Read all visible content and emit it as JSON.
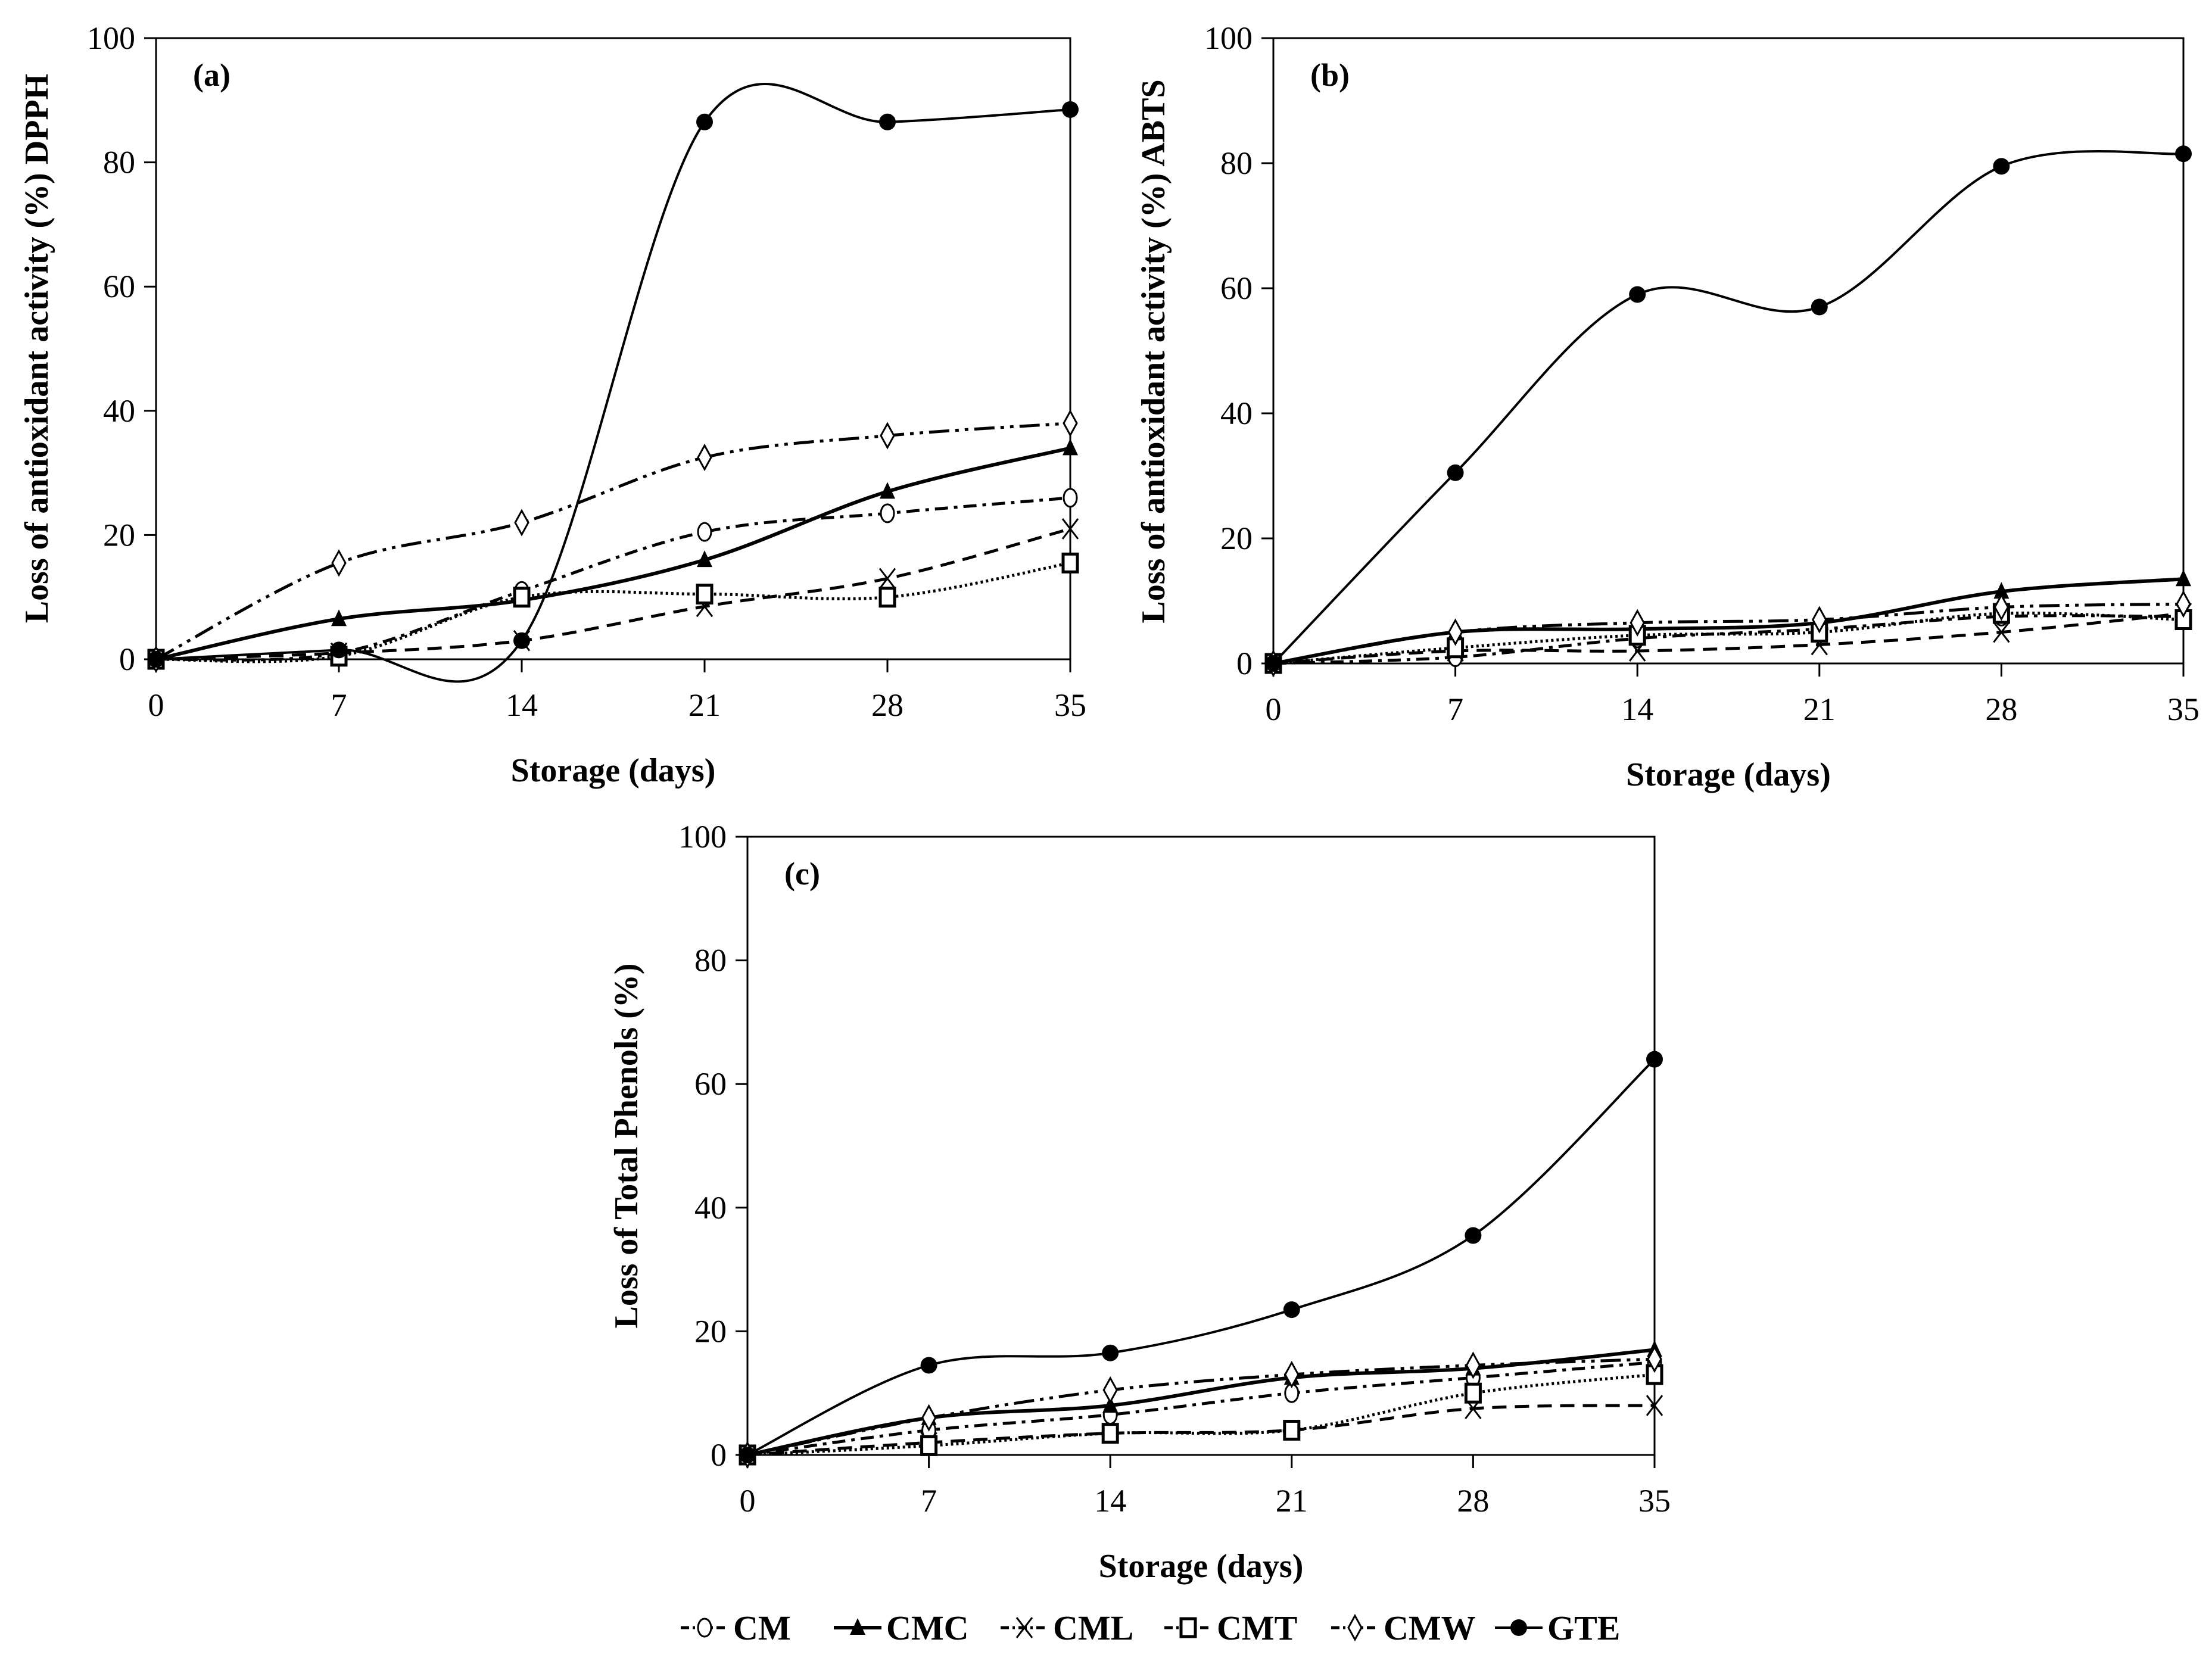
{
  "chart_data": [
    {
      "type": "line",
      "panel_label": "(a)",
      "xlabel": "Storage (days)",
      "ylabel": "Loss of antioxidant activity (%) DPPH",
      "x": [
        0,
        7,
        14,
        21,
        28,
        35
      ],
      "xticks": [
        "0",
        "7",
        "14",
        "21",
        "28",
        "35"
      ],
      "yticks": [
        "0",
        "20",
        "40",
        "60",
        "80",
        "100"
      ],
      "xlim": [
        0,
        35
      ],
      "ylim": [
        0,
        100
      ],
      "grid": false,
      "series": [
        {
          "name": "CM",
          "values": [
            0,
            1,
            11,
            20.5,
            23.5,
            26
          ]
        },
        {
          "name": "CMC",
          "values": [
            0,
            6.5,
            9.5,
            16,
            27,
            34
          ]
        },
        {
          "name": "CML",
          "values": [
            0,
            1,
            3,
            8.5,
            13,
            21
          ]
        },
        {
          "name": "CMT",
          "values": [
            0,
            0.5,
            10,
            10.5,
            10,
            15.5
          ]
        },
        {
          "name": "CMW",
          "values": [
            0,
            15.5,
            22,
            32.5,
            36,
            38
          ]
        },
        {
          "name": "GTE",
          "values": [
            0,
            1.5,
            3,
            86.5,
            86.5,
            88.5
          ]
        }
      ]
    },
    {
      "type": "line",
      "panel_label": "(b)",
      "xlabel": "Storage (days)",
      "ylabel": "Loss of antioxidant activity (%) ABTS",
      "x": [
        0,
        7,
        14,
        21,
        28,
        35
      ],
      "xticks": [
        "0",
        "7",
        "14",
        "21",
        "28",
        "35"
      ],
      "yticks": [
        "0",
        "20",
        "40",
        "60",
        "80",
        "100"
      ],
      "xlim": [
        0,
        35
      ],
      "ylim": [
        0,
        100
      ],
      "grid": false,
      "series": [
        {
          "name": "CM",
          "values": [
            0,
            1,
            4,
            5.5,
            7.5,
            7.5
          ]
        },
        {
          "name": "CMC",
          "values": [
            0,
            5,
            5.5,
            6.5,
            11.5,
            13.5
          ]
        },
        {
          "name": "CML",
          "values": [
            0,
            2,
            2,
            3,
            5,
            8
          ]
        },
        {
          "name": "CMT",
          "values": [
            0,
            2.5,
            4.5,
            5,
            8,
            7
          ]
        },
        {
          "name": "CMW",
          "values": [
            0,
            5,
            6.5,
            7,
            9,
            9.5
          ]
        },
        {
          "name": "GTE",
          "values": [
            0,
            30.5,
            59,
            57,
            79.5,
            81.5
          ]
        }
      ]
    },
    {
      "type": "line",
      "panel_label": "(c)",
      "xlabel": "Storage (days)",
      "ylabel": "Loss of Total Phenols (%)",
      "x": [
        0,
        7,
        14,
        21,
        28,
        35
      ],
      "xticks": [
        "0",
        "7",
        "14",
        "21",
        "28",
        "35"
      ],
      "yticks": [
        "0",
        "20",
        "40",
        "60",
        "80",
        "100"
      ],
      "xlim": [
        0,
        35
      ],
      "ylim": [
        0,
        100
      ],
      "grid": false,
      "series": [
        {
          "name": "CM",
          "values": [
            0,
            4,
            6.5,
            10,
            12.5,
            15
          ]
        },
        {
          "name": "CMC",
          "values": [
            0,
            6,
            8,
            12.5,
            14,
            17
          ]
        },
        {
          "name": "CML",
          "values": [
            0,
            2,
            3.5,
            4,
            7.5,
            8
          ]
        },
        {
          "name": "CMT",
          "values": [
            0,
            1.5,
            3.5,
            4,
            10,
            13
          ]
        },
        {
          "name": "CMW",
          "values": [
            0,
            6,
            10.5,
            13,
            14.5,
            15.5
          ]
        },
        {
          "name": "GTE",
          "values": [
            0,
            14.5,
            16.5,
            23.5,
            35.5,
            64
          ]
        }
      ]
    }
  ],
  "legend": {
    "placement": "bottom-center",
    "entries": [
      "CM",
      "CMC",
      "CML",
      "CMT",
      "CMW",
      "GTE"
    ]
  }
}
